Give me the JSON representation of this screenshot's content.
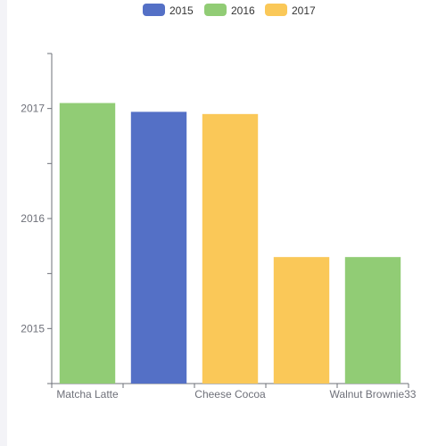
{
  "colors": {
    "2015": "#5470c6",
    "2016": "#91cc75",
    "2017": "#fac858",
    "axis": "#6e7079"
  },
  "chart_data": {
    "type": "bar",
    "legend": [
      "2015",
      "2016",
      "2017"
    ],
    "legend_placement": "top-center",
    "x_tick_labels": [
      "Matcha Latte",
      "Cheese Cocoa",
      "Walnut Brownie33"
    ],
    "y_axis": {
      "tick_labels": [
        "2015",
        "2016",
        "2017"
      ],
      "tick_values": [
        2015,
        2016,
        2017
      ],
      "range": [
        2014.5,
        2017.5
      ]
    },
    "grid": false,
    "bars": [
      {
        "series": "2016",
        "value": 2017.05
      },
      {
        "series": "2015",
        "value": 2016.97
      },
      {
        "series": "2017",
        "value": 2016.95
      },
      {
        "series": "2017",
        "value": 2015.65
      },
      {
        "series": "2016",
        "value": 2015.65
      }
    ]
  }
}
